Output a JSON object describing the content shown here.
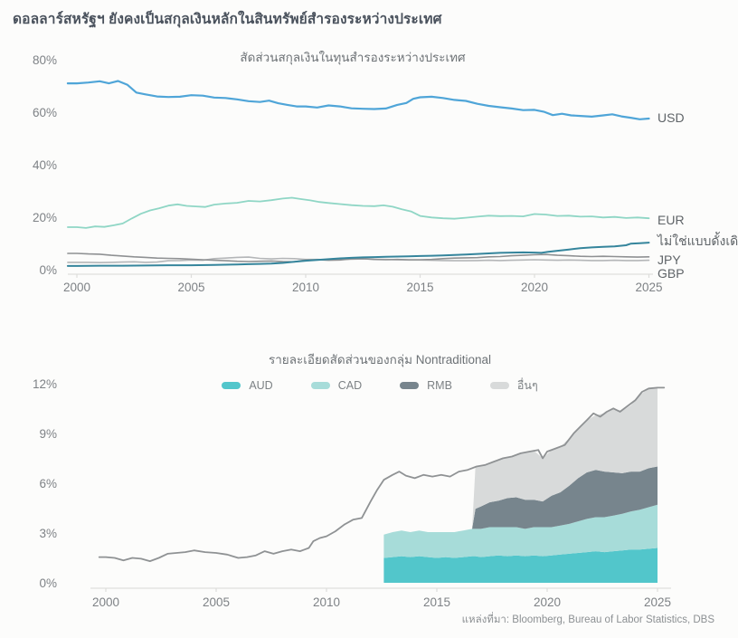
{
  "page": {
    "title": "ดอลลาร์สหรัฐฯ ยังคงเป็นสกุลเงินหลักในสินทรัพย์สำรองระหว่างประเทศ",
    "source": "แหล่งที่มา: Bloomberg, Bureau of Labor Statistics, DBS"
  },
  "chart_data": [
    {
      "type": "line",
      "title": "สัดส่วนสกุลเงินในทุนสำรองระหว่างประเทศ",
      "xlabel": "",
      "ylabel": "",
      "xlim": [
        1999.6,
        2025.3
      ],
      "ylim": [
        0,
        80
      ],
      "x_ticks": [
        2000,
        2005,
        2010,
        2015,
        2020,
        2025
      ],
      "y_ticks": [
        0,
        20,
        40,
        60,
        80
      ],
      "y_tick_suffix": "%",
      "grid": false,
      "legend_position": "right-end-labels",
      "series": [
        {
          "name": "USD",
          "label": "USD",
          "color": "#4fa5d8",
          "width": 2.2,
          "x": [
            2000,
            2000.5,
            2001,
            2001.4,
            2001.8,
            2002.2,
            2002.6,
            2003,
            2003.5,
            2004,
            2004.5,
            2005,
            2005.5,
            2006,
            2006.5,
            2007,
            2007.5,
            2008,
            2008.4,
            2008.8,
            2009.2,
            2009.6,
            2010,
            2010.5,
            2011,
            2011.5,
            2012,
            2012.5,
            2013,
            2013.5,
            2014,
            2014.4,
            2014.7,
            2015,
            2015.5,
            2016,
            2016.5,
            2017,
            2017.5,
            2018,
            2018.5,
            2019,
            2019.5,
            2020,
            2020.4,
            2020.8,
            2021.2,
            2021.6,
            2022,
            2022.5,
            2023,
            2023.4,
            2023.8,
            2024.2,
            2024.6,
            2025
          ],
          "y": [
            71.0,
            71.3,
            71.8,
            71.0,
            71.9,
            70.5,
            67.5,
            66.8,
            66.0,
            65.8,
            65.9,
            66.5,
            66.3,
            65.6,
            65.4,
            64.9,
            64.2,
            63.9,
            64.4,
            63.4,
            62.8,
            62.2,
            62.2,
            61.8,
            62.6,
            62.2,
            61.5,
            61.3,
            61.2,
            61.4,
            62.8,
            63.5,
            65.1,
            65.7,
            65.9,
            65.4,
            64.7,
            64.3,
            63.2,
            62.4,
            61.9,
            61.4,
            60.8,
            60.9,
            60.2,
            58.9,
            59.4,
            58.8,
            58.6,
            58.3,
            58.8,
            59.2,
            58.4,
            57.9,
            57.3,
            57.6
          ]
        },
        {
          "name": "EUR",
          "label": "EUR",
          "color": "#8fd6c5",
          "width": 1.8,
          "x": [
            2000,
            2000.4,
            2000.8,
            2001.2,
            2001.6,
            2002,
            2002.4,
            2002.8,
            2003.2,
            2003.6,
            2004,
            2004.4,
            2004.8,
            2005.2,
            2005.6,
            2006,
            2006.5,
            2007,
            2007.5,
            2008,
            2008.5,
            2009,
            2009.4,
            2009.8,
            2010.2,
            2010.6,
            2011,
            2011.5,
            2012,
            2012.5,
            2013,
            2013.4,
            2013.8,
            2014.2,
            2014.6,
            2015,
            2015.5,
            2016,
            2016.5,
            2017,
            2017.5,
            2018,
            2018.5,
            2019,
            2019.5,
            2020,
            2020.5,
            2021,
            2021.5,
            2022,
            2022.5,
            2023,
            2023.5,
            2024,
            2024.5,
            2025
          ],
          "y": [
            16.2,
            15.9,
            16.5,
            16.3,
            16.9,
            17.6,
            19.5,
            21.3,
            22.6,
            23.4,
            24.4,
            24.9,
            24.3,
            24.1,
            23.9,
            24.8,
            25.2,
            25.5,
            26.2,
            26.0,
            26.5,
            27.1,
            27.4,
            26.9,
            26.4,
            25.8,
            25.4,
            25.0,
            24.6,
            24.3,
            24.2,
            24.5,
            24.0,
            23.0,
            22.2,
            20.5,
            19.9,
            19.6,
            19.4,
            19.8,
            20.2,
            20.6,
            20.4,
            20.5,
            20.3,
            21.2,
            21.0,
            20.5,
            20.6,
            20.2,
            20.3,
            19.9,
            20.1,
            19.7,
            19.9,
            19.6
          ]
        },
        {
          "name": "NONTRAD",
          "label": "ไม่ใช่แบบดั้งเดิม",
          "color": "#35859c",
          "width": 2,
          "x": [
            2000,
            2001,
            2002,
            2003,
            2004,
            2005,
            2006,
            2007,
            2007.5,
            2008,
            2008.5,
            2009,
            2009.5,
            2010,
            2010.5,
            2011,
            2011.5,
            2012,
            2012.5,
            2013,
            2013.5,
            2014,
            2014.5,
            2015,
            2015.5,
            2016,
            2016.5,
            2017,
            2017.5,
            2018,
            2018.5,
            2019,
            2019.5,
            2020,
            2020.3,
            2020.6,
            2021,
            2021.5,
            2022,
            2022.5,
            2023,
            2023.5,
            2024,
            2024.2,
            2024.6,
            2025
          ],
          "y": [
            1.4,
            1.5,
            1.5,
            1.6,
            1.7,
            1.7,
            1.8,
            2.0,
            2.1,
            2.2,
            2.3,
            2.6,
            3.0,
            3.4,
            3.7,
            4.0,
            4.3,
            4.5,
            4.7,
            4.8,
            4.9,
            5.0,
            5.1,
            5.2,
            5.3,
            5.4,
            5.6,
            5.8,
            6.0,
            6.2,
            6.4,
            6.5,
            6.6,
            6.5,
            6.4,
            6.8,
            7.2,
            7.7,
            8.2,
            8.5,
            8.7,
            8.9,
            9.3,
            9.9,
            10.1,
            10.3
          ]
        },
        {
          "name": "JPY",
          "label": "JPY",
          "color": "#8f9193",
          "width": 1.6,
          "x": [
            2000,
            2000.5,
            2001,
            2001.5,
            2002,
            2002.5,
            2003,
            2003.5,
            2004,
            2004.5,
            2005,
            2005.5,
            2006,
            2006.5,
            2007,
            2007.5,
            2008,
            2008.5,
            2009,
            2009.5,
            2010,
            2010.5,
            2011,
            2011.5,
            2012,
            2012.5,
            2013,
            2013.5,
            2014,
            2014.5,
            2015,
            2015.5,
            2016,
            2016.5,
            2017,
            2017.5,
            2018,
            2018.5,
            2019,
            2019.5,
            2020,
            2020.5,
            2021,
            2021.5,
            2022,
            2022.5,
            2023,
            2023.5,
            2024,
            2024.5,
            2025
          ],
          "y": [
            6.2,
            6.0,
            5.9,
            5.5,
            5.2,
            4.9,
            4.7,
            4.4,
            4.3,
            4.2,
            4.0,
            3.8,
            3.6,
            3.4,
            3.2,
            3.1,
            3.2,
            3.3,
            3.1,
            3.0,
            3.7,
            3.8,
            3.6,
            3.7,
            4.1,
            4.2,
            3.9,
            3.8,
            3.9,
            3.8,
            3.8,
            3.9,
            4.2,
            4.4,
            4.5,
            4.6,
            4.9,
            5.0,
            5.3,
            5.5,
            5.7,
            5.8,
            5.5,
            5.3,
            5.1,
            5.0,
            5.1,
            5.0,
            4.9,
            4.8,
            4.9
          ]
        },
        {
          "name": "GBP",
          "label": "GBP",
          "color": "#b4b6b8",
          "width": 1.6,
          "x": [
            2000,
            2000.5,
            2001,
            2001.5,
            2002,
            2002.5,
            2003,
            2003.5,
            2004,
            2004.5,
            2005,
            2005.5,
            2006,
            2006.5,
            2007,
            2007.5,
            2008,
            2008.5,
            2009,
            2009.5,
            2010,
            2010.5,
            2011,
            2011.5,
            2012,
            2012.5,
            2013,
            2013.5,
            2014,
            2014.5,
            2015,
            2015.5,
            2016,
            2016.5,
            2017,
            2017.5,
            2018,
            2018.5,
            2019,
            2019.5,
            2020,
            2020.5,
            2021,
            2021.5,
            2022,
            2022.5,
            2023,
            2023.5,
            2024,
            2024.5,
            2025
          ],
          "y": [
            2.8,
            2.8,
            2.7,
            2.8,
            2.9,
            3.0,
            2.8,
            2.9,
            3.4,
            3.5,
            3.7,
            3.6,
            4.2,
            4.4,
            4.7,
            4.8,
            4.3,
            4.1,
            4.3,
            4.2,
            3.9,
            3.9,
            3.8,
            3.9,
            4.0,
            4.1,
            4.0,
            3.9,
            3.8,
            3.7,
            3.7,
            3.6,
            3.5,
            3.4,
            3.4,
            3.5,
            3.6,
            3.5,
            3.6,
            3.7,
            3.8,
            3.7,
            3.6,
            3.7,
            3.6,
            3.5,
            3.5,
            3.6,
            3.5,
            3.5,
            3.6
          ]
        }
      ]
    },
    {
      "type": "area",
      "title": "รายละเอียดสัดส่วนของกลุ่ม Nontraditional",
      "xlabel": "",
      "ylabel": "",
      "xlim": [
        1999.7,
        2025.3
      ],
      "ylim": [
        0,
        12
      ],
      "x_ticks": [
        2000,
        2005,
        2010,
        2015,
        2020,
        2025
      ],
      "y_ticks": [
        0,
        3,
        6,
        9,
        12
      ],
      "y_tick_suffix": "%",
      "grid": false,
      "legend_position": "top",
      "legend": [
        {
          "label": "AUD",
          "color": "#52c6cb"
        },
        {
          "label": "CAD",
          "color": "#a7dcd9"
        },
        {
          "label": "RMB",
          "color": "#77858d"
        },
        {
          "label": "อื่นๆ",
          "color": "#d8dada"
        }
      ],
      "total_line": {
        "name": "nontraditional-total",
        "color": "#8f9294",
        "width": 1.8,
        "x": [
          2000,
          2000.4,
          2000.8,
          2001.2,
          2001.6,
          2002,
          2002.4,
          2002.8,
          2003.2,
          2003.6,
          2004,
          2004.5,
          2005,
          2005.5,
          2006,
          2006.4,
          2006.8,
          2007.2,
          2007.6,
          2008,
          2008.4,
          2008.8,
          2009,
          2009.2,
          2009.4,
          2009.7,
          2010,
          2010.4,
          2010.8,
          2011.2,
          2011.6,
          2012,
          2012.3,
          2012.6,
          2013,
          2013.3,
          2013.6,
          2014,
          2014.4,
          2014.8,
          2015.2,
          2015.6,
          2016,
          2016.4,
          2016.8,
          2017.2,
          2017.6,
          2018,
          2018.4,
          2018.8,
          2019.2,
          2019.6,
          2019.8,
          2020,
          2020.4,
          2020.8,
          2021.2,
          2021.5,
          2021.8,
          2022.1,
          2022.4,
          2022.7,
          2023,
          2023.3,
          2023.6,
          2024,
          2024.3,
          2024.6,
          2025
        ],
        "y": [
          1.55,
          1.5,
          1.35,
          1.5,
          1.45,
          1.3,
          1.5,
          1.75,
          1.8,
          1.85,
          1.95,
          1.85,
          1.8,
          1.7,
          1.5,
          1.55,
          1.65,
          1.9,
          1.75,
          1.9,
          2.0,
          1.9,
          2.0,
          2.1,
          2.5,
          2.7,
          2.8,
          3.1,
          3.5,
          3.8,
          3.9,
          4.9,
          5.6,
          6.2,
          6.5,
          6.7,
          6.45,
          6.3,
          6.5,
          6.4,
          6.5,
          6.4,
          6.7,
          6.8,
          7.0,
          7.1,
          7.3,
          7.5,
          7.6,
          7.8,
          7.9,
          8.0,
          7.5,
          7.9,
          8.1,
          8.3,
          9.0,
          9.4,
          9.8,
          10.2,
          10.0,
          10.3,
          10.5,
          10.3,
          10.6,
          11.0,
          11.5,
          11.7,
          11.75
        ]
      },
      "stack_x": [
        2012.6,
        2013,
        2013.4,
        2013.8,
        2014.2,
        2014.6,
        2015,
        2015.4,
        2015.8,
        2016.2,
        2016.6,
        2016.75,
        2017,
        2017.4,
        2017.8,
        2018.2,
        2018.6,
        2019,
        2019.4,
        2019.8,
        2020.2,
        2020.6,
        2021,
        2021.4,
        2021.8,
        2022.2,
        2022.6,
        2023,
        2023.4,
        2023.8,
        2024.2,
        2024.6,
        2025
      ],
      "areas": [
        {
          "name": "AUD",
          "color": "#52c6cb",
          "values": [
            1.5,
            1.55,
            1.6,
            1.55,
            1.6,
            1.55,
            1.5,
            1.55,
            1.5,
            1.55,
            1.6,
            1.6,
            1.55,
            1.6,
            1.65,
            1.6,
            1.65,
            1.6,
            1.65,
            1.6,
            1.65,
            1.7,
            1.75,
            1.8,
            1.85,
            1.9,
            1.85,
            1.9,
            1.95,
            2.0,
            2.0,
            2.05,
            2.1
          ]
        },
        {
          "name": "CAD",
          "color": "#a7dcd9",
          "values": [
            1.4,
            1.5,
            1.55,
            1.5,
            1.55,
            1.5,
            1.55,
            1.5,
            1.55,
            1.6,
            1.65,
            1.65,
            1.7,
            1.75,
            1.7,
            1.75,
            1.7,
            1.65,
            1.7,
            1.75,
            1.7,
            1.75,
            1.8,
            1.9,
            2.0,
            2.05,
            2.1,
            2.15,
            2.2,
            2.3,
            2.4,
            2.5,
            2.6
          ]
        },
        {
          "name": "RMB",
          "color": "#77858d",
          "values": [
            0,
            0,
            0,
            0,
            0,
            0,
            0,
            0,
            0,
            0,
            0,
            1.2,
            1.35,
            1.5,
            1.6,
            1.75,
            1.8,
            1.75,
            1.65,
            1.55,
            1.9,
            2.0,
            2.3,
            2.6,
            2.8,
            2.85,
            2.75,
            2.6,
            2.45,
            2.4,
            2.3,
            2.35,
            2.3
          ]
        },
        {
          "name": "อื่นๆ",
          "color": "#d8dada",
          "values": [
            0,
            0,
            0,
            0,
            0,
            0,
            0,
            0,
            0,
            0,
            0,
            2.55,
            2.45,
            2.35,
            2.45,
            2.45,
            2.55,
            2.85,
            2.95,
            2.6,
            2.75,
            2.75,
            2.85,
            3.0,
            3.15,
            3.3,
            3.5,
            3.85,
            3.75,
            4.0,
            4.6,
            4.8,
            4.75
          ]
        }
      ]
    }
  ]
}
